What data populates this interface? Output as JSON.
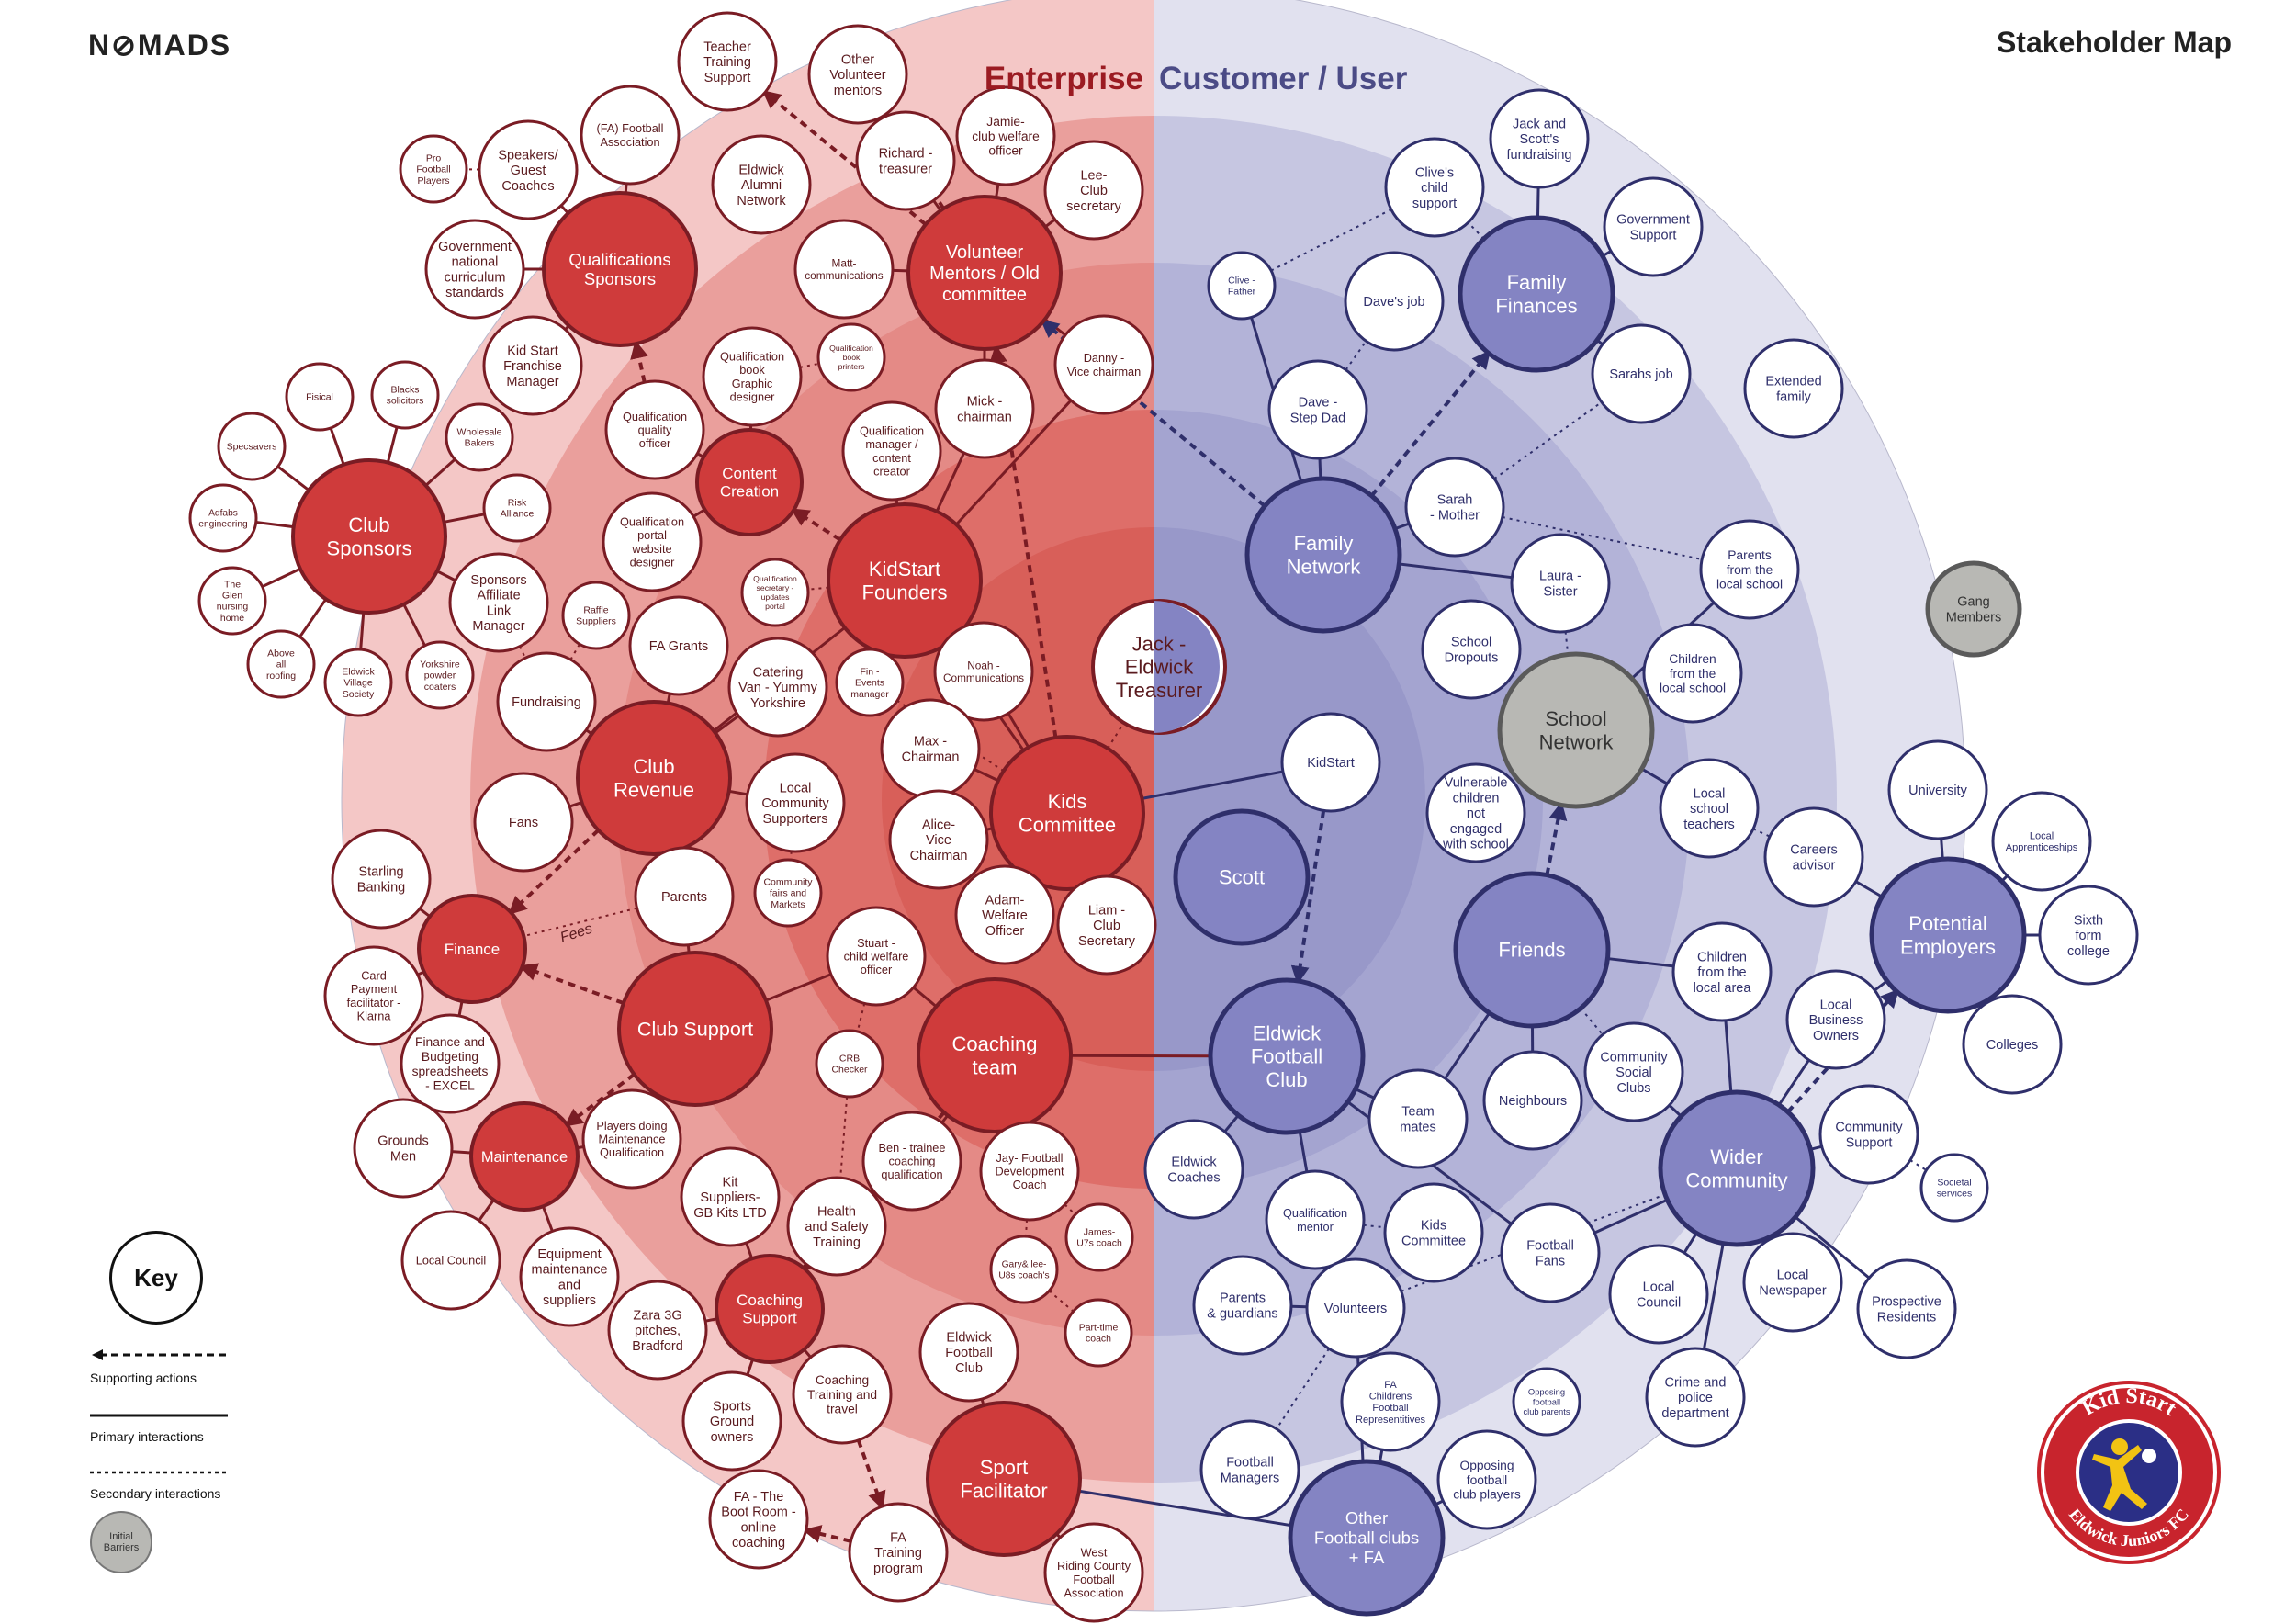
{
  "header": {
    "brand": "N⊘MADS",
    "title": "Stakeholder Map"
  },
  "sections": {
    "enterprise": "Enterprise",
    "customer": "Customer / User"
  },
  "colors": {
    "enterprise_ring": "#f4c7c6",
    "enterprise_mid": "#ea9f9c",
    "enterprise_inner": "#e27c78",
    "enterprise_core": "#d9625c",
    "enterprise_node": "#cf3b3b",
    "customer_ring": "#e0e0ef",
    "customer_mid": "#c4c4e1",
    "customer_inner": "#a9a9d2",
    "customer_node": "#8484c3",
    "dark_red": "#7a1c24",
    "dark_blue": "#2f2f6b",
    "barrier": "#b8b8b4"
  },
  "key": {
    "title": "Key",
    "supporting": "Supporting actions",
    "primary": "Primary interactions",
    "secondary": "Secondary interactions",
    "barrier": "Initial Barriers"
  },
  "logo": {
    "top_text": "Kid Start",
    "bottom_text": "Eldwick Juniors FC"
  },
  "nodes": [
    {
      "id": "qualsponsors",
      "label": "Qualifications\nSponsors",
      "type": "red"
    },
    {
      "id": "volunteer",
      "label": "Volunteer\nMentors / Old\ncommittee",
      "type": "red"
    },
    {
      "id": "clubsponsors",
      "label": "Club\nSponsors",
      "type": "red"
    },
    {
      "id": "content",
      "label": "Content\nCreation",
      "type": "red"
    },
    {
      "id": "kidstartf",
      "label": "KidStart\nFounders",
      "type": "red"
    },
    {
      "id": "clubrevenue",
      "label": "Club\nRevenue",
      "type": "red"
    },
    {
      "id": "kidscomm",
      "label": "Kids\nCommittee",
      "type": "red"
    },
    {
      "id": "finance",
      "label": "Finance",
      "type": "red"
    },
    {
      "id": "clubsupport",
      "label": "Club Support",
      "type": "red"
    },
    {
      "id": "coachingteam",
      "label": "Coaching\nteam",
      "type": "red"
    },
    {
      "id": "maintenance",
      "label": "Maintenance",
      "type": "red"
    },
    {
      "id": "coachsupport",
      "label": "Coaching\nSupport",
      "type": "red"
    },
    {
      "id": "sportfac",
      "label": "Sport\nFacilitator",
      "type": "red"
    },
    {
      "id": "familyfin",
      "label": "Family\nFinances",
      "type": "blue"
    },
    {
      "id": "familynet",
      "label": "Family\nNetwork",
      "type": "blue"
    },
    {
      "id": "scott",
      "label": "Scott",
      "type": "blue"
    },
    {
      "id": "friends",
      "label": "Friends",
      "type": "blue"
    },
    {
      "id": "efc",
      "label": "Eldwick\nFootball\nClub",
      "type": "blue"
    },
    {
      "id": "potemp",
      "label": "Potential\nEmployers",
      "type": "blue"
    },
    {
      "id": "wider",
      "label": "Wider\nCommunity",
      "type": "blue"
    },
    {
      "id": "otherclubs",
      "label": "Other\nFootball clubs\n+ FA",
      "type": "blue"
    },
    {
      "id": "schoolnet",
      "label": "School\nNetwork",
      "type": "gray"
    },
    {
      "id": "gang",
      "label": "Gang\nMembers",
      "type": "gray"
    },
    {
      "id": "jack",
      "label": "Jack -\nEldwick\nTreasurer",
      "type": "jack"
    },
    {
      "id": "teacher",
      "label": "Teacher\nTraining\nSupport",
      "type": "white"
    },
    {
      "id": "othervol",
      "label": "Other\nVolunteer\nmentors",
      "type": "white"
    },
    {
      "id": "jamie",
      "label": "Jamie-\nclub welfare\nofficer",
      "type": "white"
    },
    {
      "id": "richard",
      "label": "Richard -\ntreasurer",
      "type": "white"
    },
    {
      "id": "lee",
      "label": "Lee-\nClub\nsecretary",
      "type": "white"
    },
    {
      "id": "alumni",
      "label": "Eldwick\nAlumni\nNetwork",
      "type": "white"
    },
    {
      "id": "fafa",
      "label": "(FA) Football\nAssociation",
      "type": "white"
    },
    {
      "id": "speakers",
      "label": "Speakers/\nGuest\nCoaches",
      "type": "white"
    },
    {
      "id": "pro",
      "label": "Pro\nFootball\nPlayers",
      "type": "white"
    },
    {
      "id": "govcurr",
      "label": "Government\nnational\ncurriculum\nstandards",
      "type": "white"
    },
    {
      "id": "matt",
      "label": "Matt-\ncommunications",
      "type": "white"
    },
    {
      "id": "danny",
      "label": "Danny -\nVice chairman",
      "type": "white"
    },
    {
      "id": "kidfran",
      "label": "Kid Start\nFranchise\nManager",
      "type": "white"
    },
    {
      "id": "qualbook",
      "label": "Qualification\nbook\nGraphic\ndesigner",
      "type": "white"
    },
    {
      "id": "qualprint",
      "label": "Qualification\nbook\nprinters",
      "type": "white"
    },
    {
      "id": "mick",
      "label": "Mick -\nchairman",
      "type": "white"
    },
    {
      "id": "qualmgr",
      "label": "Qualification\nmanager /\ncontent\ncreator",
      "type": "white"
    },
    {
      "id": "qualqual",
      "label": "Qualification\nquality\nofficer",
      "type": "white"
    },
    {
      "id": "qualportal",
      "label": "Qualification\nportal\nwebsite\ndesigner",
      "type": "white"
    },
    {
      "id": "qualsec",
      "label": "Qualification\nsecretary -\nupdates\nportal",
      "type": "white"
    },
    {
      "id": "fisical",
      "label": "Fisical",
      "type": "white"
    },
    {
      "id": "blacks",
      "label": "Blacks\nsolicitors",
      "type": "white"
    },
    {
      "id": "specsavers",
      "label": "Specsavers",
      "type": "white"
    },
    {
      "id": "wholesale",
      "label": "Wholesale\nBakers",
      "type": "white"
    },
    {
      "id": "adfabs",
      "label": "Adfabs\nengineering",
      "type": "white"
    },
    {
      "id": "risk",
      "label": "Risk\nAlliance",
      "type": "white"
    },
    {
      "id": "glen",
      "label": "The\nGlen\nnursing\nhome",
      "type": "white"
    },
    {
      "id": "sponsaff",
      "label": "Sponsors\nAffiliate\nLink\nManager",
      "type": "white"
    },
    {
      "id": "above",
      "label": "Above\nall\nroofing",
      "type": "white"
    },
    {
      "id": "eldvil",
      "label": "Eldwick\nVillage\nSociety",
      "type": "white"
    },
    {
      "id": "yorkpow",
      "label": "Yorkshire\npowder\ncoaters",
      "type": "white"
    },
    {
      "id": "raffle",
      "label": "Raffle\nSuppliers",
      "type": "white"
    },
    {
      "id": "fundraising",
      "label": "Fundraising",
      "type": "white"
    },
    {
      "id": "fagrants",
      "label": "FA Grants",
      "type": "white"
    },
    {
      "id": "catering",
      "label": "Catering\nVan - Yummy\nYorkshire",
      "type": "white"
    },
    {
      "id": "finevents",
      "label": "Fin -\nEvents\nmanager",
      "type": "white"
    },
    {
      "id": "noah",
      "label": "Noah -\nCommunications",
      "type": "white"
    },
    {
      "id": "fans",
      "label": "Fans",
      "type": "white"
    },
    {
      "id": "localcomm",
      "label": "Local\nCommunity\nSupporters",
      "type": "white"
    },
    {
      "id": "maxc",
      "label": "Max -\nChairman",
      "type": "white"
    },
    {
      "id": "starling",
      "label": "Starling\nBanking",
      "type": "white"
    },
    {
      "id": "parents",
      "label": "Parents",
      "type": "white"
    },
    {
      "id": "commfairs",
      "label": "Community\nfairs and\nMarkets",
      "type": "white"
    },
    {
      "id": "alice",
      "label": "Alice-\nVice\nChairman",
      "type": "white"
    },
    {
      "id": "adam",
      "label": "Adam-\nWelfare\nOfficer",
      "type": "white"
    },
    {
      "id": "liam",
      "label": "Liam -\nClub\nSecretary",
      "type": "white"
    },
    {
      "id": "cardpay",
      "label": "Card\nPayment\nfacilitator -\nKlarna",
      "type": "white"
    },
    {
      "id": "stuart",
      "label": "Stuart -\nchild welfare\nofficer",
      "type": "white"
    },
    {
      "id": "finbud",
      "label": "Finance and\nBudgeting\nspreadsheets\n- EXCEL",
      "type": "white"
    },
    {
      "id": "crb",
      "label": "CRB\nChecker",
      "type": "white"
    },
    {
      "id": "grounds",
      "label": "Grounds\nMen",
      "type": "white"
    },
    {
      "id": "playersmq",
      "label": "Players doing\nMaintenance\nQualification",
      "type": "white"
    },
    {
      "id": "ben",
      "label": "Ben - trainee\ncoaching\nqualification",
      "type": "white"
    },
    {
      "id": "jay",
      "label": "Jay- Football\nDevelopment\nCoach",
      "type": "white"
    },
    {
      "id": "kitsup",
      "label": "Kit\nSuppliers-\nGB Kits LTD",
      "type": "white"
    },
    {
      "id": "health",
      "label": "Health\nand Safety\nTraining",
      "type": "white"
    },
    {
      "id": "james",
      "label": "James-\nU7s coach",
      "type": "white"
    },
    {
      "id": "localcouncilL",
      "label": "Local Council",
      "type": "white"
    },
    {
      "id": "equip",
      "label": "Equipment\nmaintenance\nand\nsuppliers",
      "type": "white"
    },
    {
      "id": "gary",
      "label": "Gary& lee-\nU8s coach's",
      "type": "white"
    },
    {
      "id": "zara",
      "label": "Zara 3G\npitches,\nBradford",
      "type": "white"
    },
    {
      "id": "efcred",
      "label": "Eldwick\nFootball\nClub",
      "type": "white"
    },
    {
      "id": "parttime",
      "label": "Part-time\ncoach",
      "type": "white"
    },
    {
      "id": "sportsground",
      "label": "Sports\nGround\nowners",
      "type": "white"
    },
    {
      "id": "coachtrain",
      "label": "Coaching\nTraining and\ntravel",
      "type": "white"
    },
    {
      "id": "faboot",
      "label": "FA - The\nBoot Room -\nonline\ncoaching",
      "type": "white"
    },
    {
      "id": "fatrain",
      "label": "FA\nTraining\nprogram",
      "type": "white"
    },
    {
      "id": "westriding",
      "label": "West\nRiding County\nFootball\nAssociation",
      "type": "white"
    },
    {
      "id": "jackscott",
      "label": "Jack and\nScott's\nfundraising",
      "type": "white"
    },
    {
      "id": "clive",
      "label": "Clive's\nchild\nsupport",
      "type": "white"
    },
    {
      "id": "govsup",
      "label": "Government\nSupport",
      "type": "white"
    },
    {
      "id": "clivef",
      "label": "Clive -\nFather",
      "type": "white"
    },
    {
      "id": "davejob",
      "label": "Dave's job",
      "type": "white"
    },
    {
      "id": "sarahsjob",
      "label": "Sarahs job",
      "type": "white"
    },
    {
      "id": "extfam",
      "label": "Extended\nfamily",
      "type": "white"
    },
    {
      "id": "dave",
      "label": "Dave -\nStep Dad",
      "type": "white"
    },
    {
      "id": "sarahm",
      "label": "Sarah\n- Mother",
      "type": "white"
    },
    {
      "id": "parentsls",
      "label": "Parents\nfrom the\nlocal school",
      "type": "white"
    },
    {
      "id": "laura",
      "label": "Laura -\nSister",
      "type": "white"
    },
    {
      "id": "schooldrop",
      "label": "School\nDropouts",
      "type": "white"
    },
    {
      "id": "childls",
      "label": "Children\nfrom the\nlocal school",
      "type": "white"
    },
    {
      "id": "kidstart",
      "label": "KidStart",
      "type": "white"
    },
    {
      "id": "vulnerable",
      "label": "Vulnerable\nchildren\nnot\nengaged\nwith school",
      "type": "white"
    },
    {
      "id": "localteach",
      "label": "Local\nschool\nteachers",
      "type": "white"
    },
    {
      "id": "university",
      "label": "University",
      "type": "white"
    },
    {
      "id": "careers",
      "label": "Careers\nadvisor",
      "type": "white"
    },
    {
      "id": "localapp",
      "label": "Local\nApprenticeships",
      "type": "white"
    },
    {
      "id": "sixth",
      "label": "Sixth\nform\ncollege",
      "type": "white"
    },
    {
      "id": "childla",
      "label": "Children\nfrom the\nlocal area",
      "type": "white"
    },
    {
      "id": "localbiz",
      "label": "Local\nBusiness\nOwners",
      "type": "white"
    },
    {
      "id": "colleges",
      "label": "Colleges",
      "type": "white"
    },
    {
      "id": "commsocial",
      "label": "Community\nSocial\nClubs",
      "type": "white"
    },
    {
      "id": "teammates",
      "label": "Team\nmates",
      "type": "white"
    },
    {
      "id": "neighbours",
      "label": "Neighbours",
      "type": "white"
    },
    {
      "id": "commsup",
      "label": "Community\nSupport",
      "type": "white"
    },
    {
      "id": "eldcoaches",
      "label": "Eldwick\nCoaches",
      "type": "white"
    },
    {
      "id": "qualmentor",
      "label": "Qualification\nmentor",
      "type": "white"
    },
    {
      "id": "kidscommB",
      "label": "Kids\nCommittee",
      "type": "white"
    },
    {
      "id": "footfans",
      "label": "Football\nFans",
      "type": "white"
    },
    {
      "id": "societal",
      "label": "Societal\nservices",
      "type": "white"
    },
    {
      "id": "localcouncilR",
      "label": "Local\nCouncil",
      "type": "white"
    },
    {
      "id": "localnews",
      "label": "Local\nNewspaper",
      "type": "white"
    },
    {
      "id": "prospective",
      "label": "Prospective\nResidents",
      "type": "white"
    },
    {
      "id": "parentsg",
      "label": "Parents\n& guardians",
      "type": "white"
    },
    {
      "id": "volunteers",
      "label": "Volunteers",
      "type": "white"
    },
    {
      "id": "crime",
      "label": "Crime and\npolice\ndepartment",
      "type": "white"
    },
    {
      "id": "fachild",
      "label": "FA\nChildrens\nFootball\nRepresentitives",
      "type": "white"
    },
    {
      "id": "opparents",
      "label": "Opposing\nfootball\nclub parents",
      "type": "white"
    },
    {
      "id": "footmgr",
      "label": "Football\nManagers",
      "type": "white"
    },
    {
      "id": "opplayers",
      "label": "Opposing\nfootball\nclub players",
      "type": "white"
    }
  ],
  "edge_labels": {
    "fees": "Fees"
  }
}
